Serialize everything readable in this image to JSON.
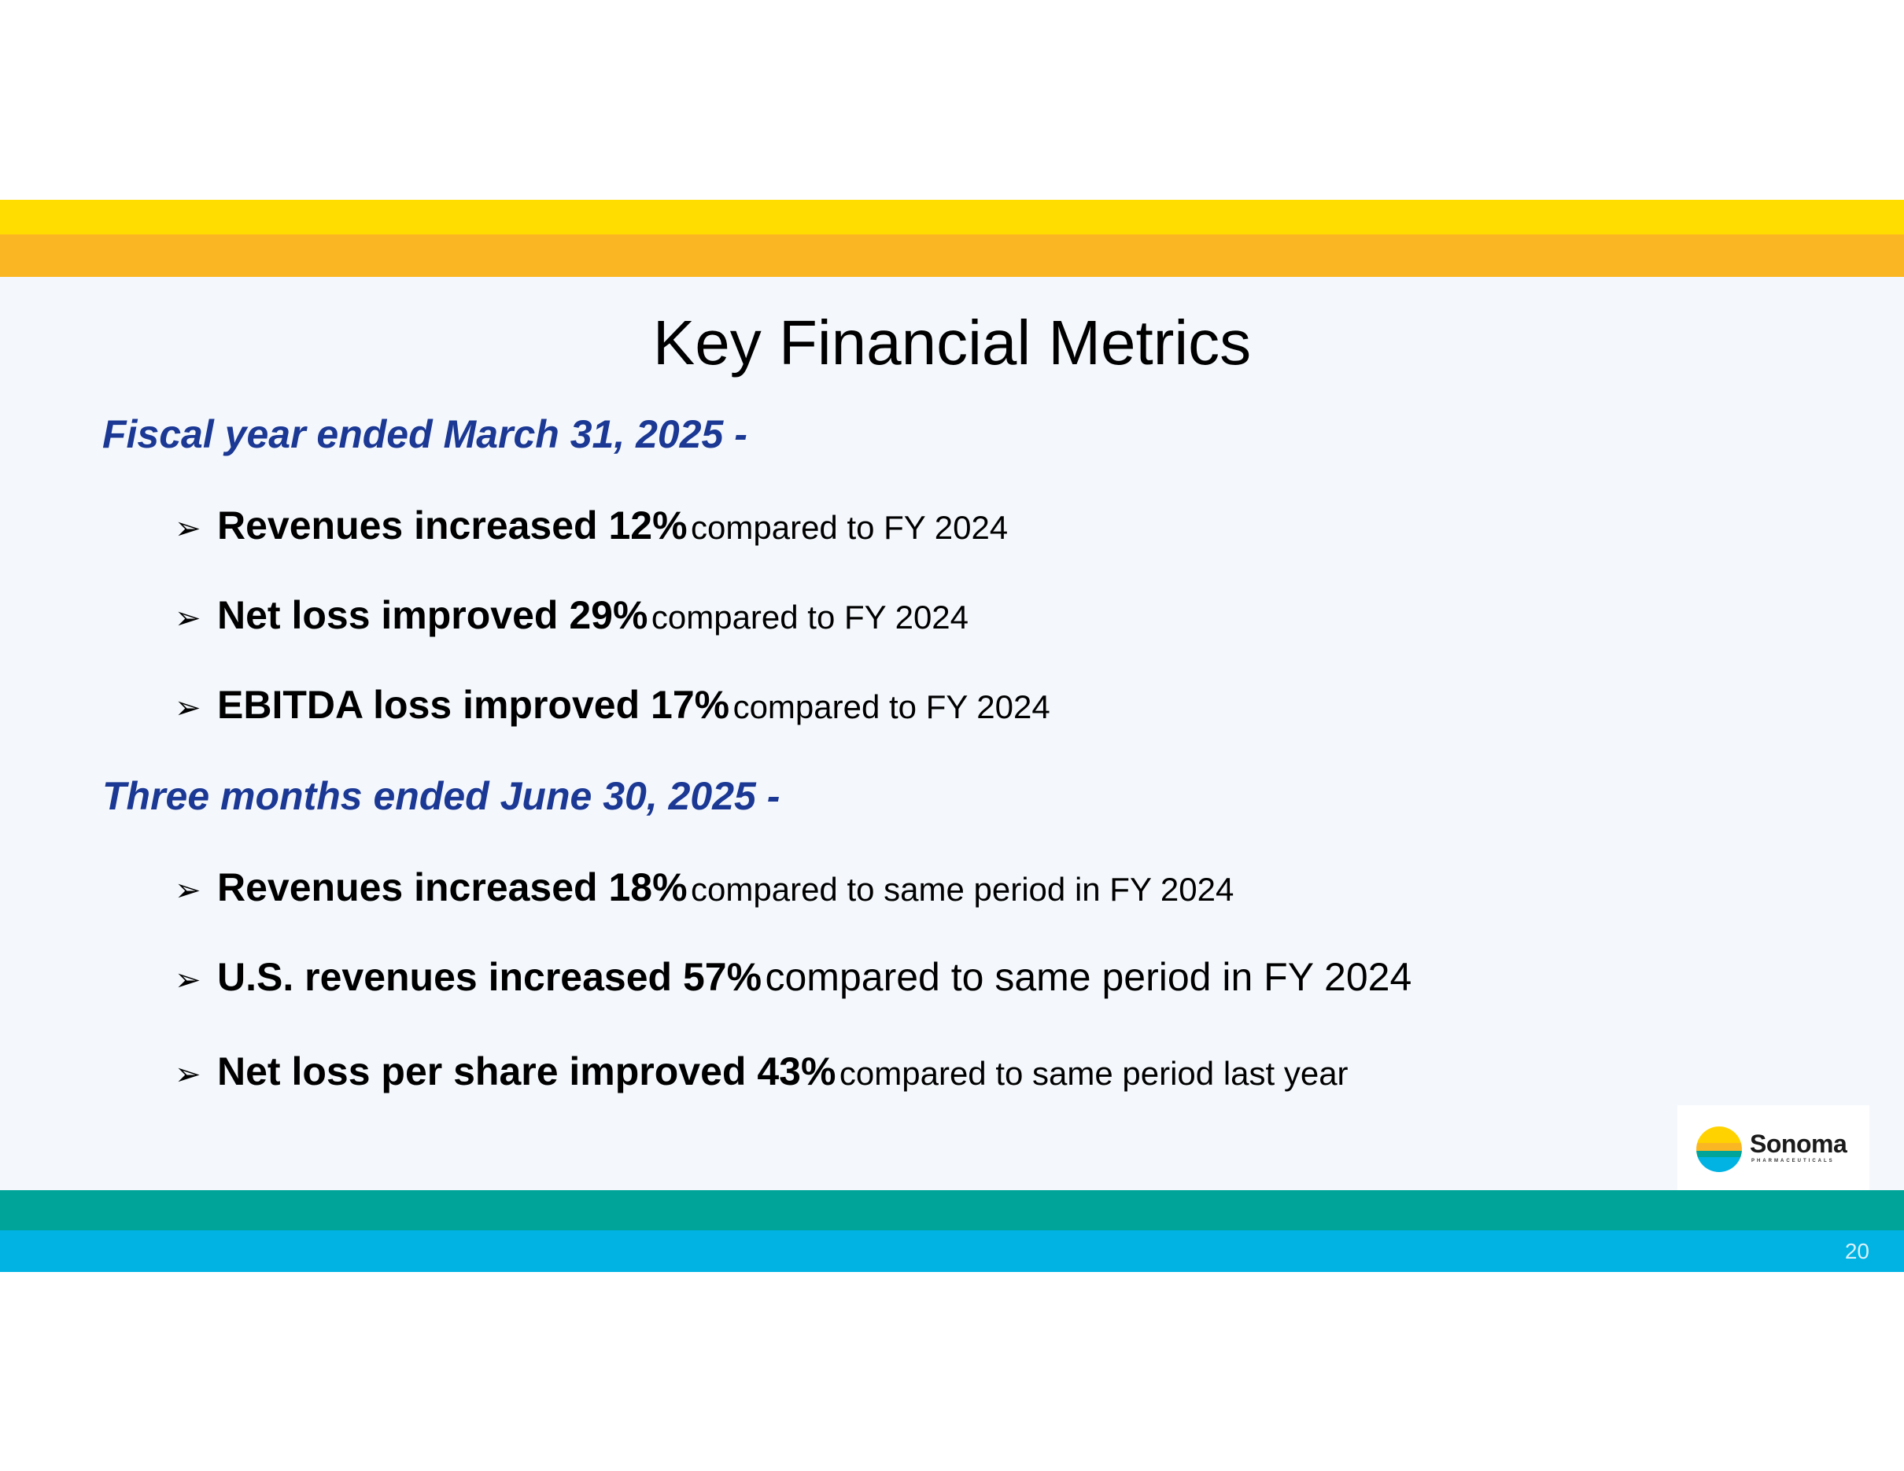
{
  "slide": {
    "title": "Key Financial Metrics",
    "page_number": "20"
  },
  "sections": [
    {
      "heading": "Fiscal year ended March 31, 2025 -",
      "bullets": [
        {
          "strong": "Revenues increased 12%",
          "rest": "compared to FY 2024"
        },
        {
          "strong": "Net loss improved 29%",
          "rest": "compared to FY 2024"
        },
        {
          "strong": "EBITDA loss improved 17%",
          "rest": "compared to FY 2024"
        }
      ]
    },
    {
      "heading": "Three months ended June 30, 2025 -",
      "bullets": [
        {
          "strong": "Revenues increased 18%",
          "rest": "compared to same period in FY 2024"
        },
        {
          "strong": "U.S. revenues increased 57%",
          "rest": "compared to same period in FY 2024"
        },
        {
          "strong": "Net loss per share improved 43%",
          "rest": "compared to same period last year"
        }
      ]
    }
  ],
  "bullet_glyph": "➢",
  "logo": {
    "name": "Sonoma",
    "tagline": "PHARMACEUTICALS",
    "icon": "sonoma-sun-icon"
  },
  "colors": {
    "yellow_band": "#ffdd00",
    "orange_band": "#fbb624",
    "teal_band": "#00a499",
    "cyan_band": "#00b3e3",
    "heading_blue": "#1b3894"
  }
}
